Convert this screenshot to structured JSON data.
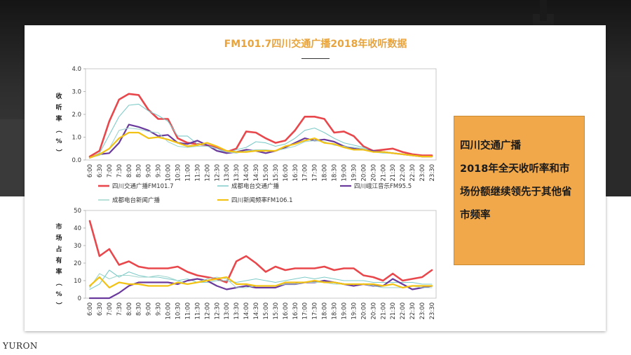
{
  "title": "FM101.7四川交通广播2018年收听数据",
  "callout": {
    "line1": "四川交通广播",
    "line2": "2018年全天收听率和市",
    "line3": "场份额继续领先于其他省",
    "line4": "市频率"
  },
  "watermark": "YURON",
  "colors": {
    "accent": "#e8a33b",
    "callout_bg": "#f0a84a"
  },
  "chart_data": [
    {
      "type": "line",
      "ylabel": "收听率（%）",
      "ylim": [
        0,
        4.0
      ],
      "yticks": [
        "0.0",
        "1.0",
        "2.0",
        "3.0",
        "4.0"
      ],
      "categories": [
        "6:00",
        "6:30",
        "7:00",
        "7:30",
        "8:00",
        "8:30",
        "9:00",
        "9:30",
        "10:00",
        "10:30",
        "11:00",
        "11:30",
        "12:00",
        "12:30",
        "13:00",
        "13:30",
        "14:00",
        "14:30",
        "15:00",
        "15:30",
        "16:00",
        "16:30",
        "17:00",
        "17:30",
        "18:00",
        "18:30",
        "19:00",
        "19:30",
        "20:00",
        "20:30",
        "21:00",
        "21:30",
        "22:00",
        "22:30",
        "23:00",
        "23:30"
      ],
      "series": [
        {
          "name": "四川交通广播FM101.7",
          "color": "#e8474c",
          "width": 2.6,
          "values": [
            0.15,
            0.4,
            1.7,
            2.65,
            2.9,
            2.85,
            2.2,
            1.8,
            1.8,
            0.95,
            0.75,
            0.7,
            0.65,
            0.55,
            0.35,
            0.5,
            1.25,
            1.2,
            0.95,
            0.75,
            0.85,
            1.3,
            1.9,
            1.9,
            1.8,
            1.2,
            1.25,
            1.05,
            0.6,
            0.4,
            0.45,
            0.5,
            0.35,
            0.25,
            0.2,
            0.2
          ]
        },
        {
          "name": "成都电台交通广播",
          "color": "#7fcbc9",
          "width": 1.1,
          "values": [
            0.1,
            0.3,
            1.1,
            1.9,
            2.4,
            2.45,
            2.15,
            1.95,
            1.7,
            1.05,
            1.05,
            0.7,
            0.65,
            0.5,
            0.3,
            0.45,
            0.55,
            0.8,
            0.75,
            0.6,
            0.7,
            0.95,
            1.3,
            1.4,
            1.2,
            0.95,
            0.75,
            0.65,
            0.55,
            0.35,
            0.35,
            0.3,
            0.25,
            0.2,
            0.15,
            0.15
          ]
        },
        {
          "name": "四川峨江音乐FM95.5",
          "color": "#6a3b9c",
          "width": 2.2,
          "values": [
            0.1,
            0.25,
            0.3,
            0.75,
            1.55,
            1.45,
            1.3,
            1.05,
            1.1,
            0.75,
            0.7,
            0.85,
            0.65,
            0.4,
            0.3,
            0.35,
            0.45,
            0.4,
            0.3,
            0.4,
            0.55,
            0.75,
            0.95,
            0.85,
            0.9,
            0.8,
            0.6,
            0.5,
            0.45,
            0.4,
            0.35,
            0.3,
            0.25,
            0.2,
            0.15,
            0.15
          ]
        },
        {
          "name": "成都电台新闻广播",
          "color": "#9fd5cc",
          "width": 1.1,
          "values": [
            0.1,
            0.2,
            0.5,
            1.3,
            1.4,
            1.35,
            1.25,
            1.2,
            0.8,
            0.6,
            0.55,
            0.6,
            0.6,
            0.5,
            0.35,
            0.3,
            0.4,
            0.45,
            0.45,
            0.4,
            0.5,
            0.6,
            0.8,
            0.85,
            0.8,
            0.65,
            0.6,
            0.55,
            0.5,
            0.35,
            0.3,
            0.3,
            0.25,
            0.2,
            0.15,
            0.15
          ]
        },
        {
          "name": "四川新闻频率FM106.1",
          "color": "#f2c215",
          "width": 2.2,
          "values": [
            0.1,
            0.25,
            0.5,
            0.95,
            1.2,
            1.2,
            0.95,
            1.0,
            0.9,
            0.75,
            0.6,
            0.65,
            0.75,
            0.6,
            0.4,
            0.35,
            0.35,
            0.4,
            0.4,
            0.4,
            0.6,
            0.7,
            0.85,
            0.95,
            0.75,
            0.7,
            0.55,
            0.45,
            0.45,
            0.35,
            0.35,
            0.3,
            0.25,
            0.2,
            0.15,
            0.15
          ]
        }
      ]
    },
    {
      "type": "line",
      "ylabel": "市场占有率（%）",
      "ylim": [
        0,
        50
      ],
      "yticks": [
        "0",
        "10",
        "20",
        "30",
        "40",
        "50"
      ],
      "categories": [
        "6:00",
        "6:30",
        "7:00",
        "7:30",
        "8:00",
        "8:30",
        "9:00",
        "9:30",
        "10:00",
        "10:30",
        "11:00",
        "11:30",
        "12:00",
        "12:30",
        "13:00",
        "13:30",
        "14:00",
        "14:30",
        "15:00",
        "15:30",
        "16:00",
        "16:30",
        "17:00",
        "17:30",
        "18:00",
        "18:30",
        "19:00",
        "19:30",
        "20:00",
        "20:30",
        "21:00",
        "21:30",
        "22:00",
        "22:30",
        "23:00",
        "23:30"
      ],
      "series": [
        {
          "name": "四川交通广播FM101.7",
          "color": "#e8474c",
          "width": 2.6,
          "values": [
            44,
            24,
            28,
            19,
            21,
            18,
            17,
            17,
            17,
            18,
            15,
            13,
            12,
            11,
            9,
            21,
            24,
            20,
            15,
            18,
            16,
            17,
            17,
            17,
            18,
            16,
            17,
            17,
            13,
            12,
            10,
            14,
            10,
            11,
            12,
            16
          ]
        },
        {
          "name": "成都电台交通广播",
          "color": "#7fcbc9",
          "width": 1.1,
          "values": [
            5,
            8,
            16,
            12,
            15,
            13,
            12,
            12,
            11,
            10,
            11,
            9,
            9,
            10,
            10,
            9,
            10,
            11,
            10,
            9,
            10,
            11,
            12,
            11,
            12,
            11,
            10,
            10,
            10,
            9,
            9,
            9,
            9,
            9,
            8,
            8
          ]
        },
        {
          "name": "四川峨江音乐FM95.5",
          "color": "#6a3b9c",
          "width": 2.2,
          "values": [
            0,
            0,
            0,
            3,
            7,
            9,
            9,
            9,
            9,
            8,
            10,
            11,
            10,
            7,
            5,
            6,
            7,
            6,
            6,
            6,
            8,
            8,
            9,
            9,
            10,
            9,
            8,
            7,
            8,
            7,
            7,
            11,
            8,
            5,
            6,
            7
          ]
        },
        {
          "name": "成都电台新闻广播",
          "color": "#9fd5cc",
          "width": 1.1,
          "values": [
            6,
            14,
            11,
            13,
            13,
            12,
            12,
            13,
            12,
            10,
            8,
            9,
            11,
            12,
            11,
            6,
            6,
            7,
            7,
            7,
            8,
            8,
            9,
            9,
            9,
            8,
            8,
            8,
            8,
            7,
            6,
            6,
            6,
            7,
            6,
            6
          ]
        },
        {
          "name": "四川新闻频率FM106.1",
          "color": "#f2c215",
          "width": 2.2,
          "values": [
            7,
            12,
            6,
            9,
            8,
            8,
            7,
            7,
            7,
            9,
            8,
            9,
            10,
            11,
            12,
            8,
            8,
            7,
            7,
            7,
            9,
            9,
            9,
            10,
            9,
            9,
            8,
            8,
            8,
            8,
            7,
            8,
            6,
            7,
            7,
            7
          ]
        }
      ]
    }
  ]
}
